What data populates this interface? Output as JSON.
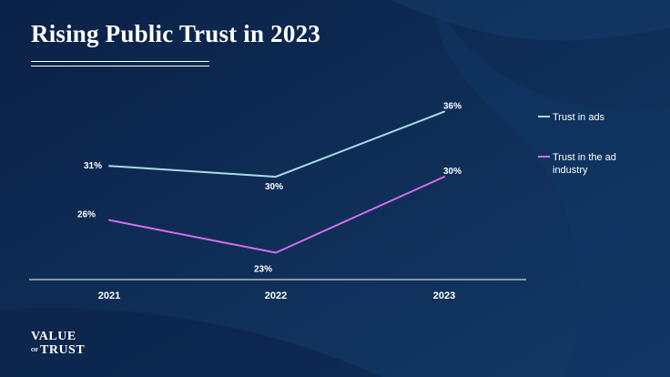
{
  "page": {
    "title": "Rising Public Trust in 2023",
    "logo": {
      "line1": "VALUE",
      "small": "OF",
      "line2": "TRUST"
    }
  },
  "colors": {
    "background": "#0d2a52",
    "trust_in_ads": "#a9dcea",
    "trust_in_ad_industry": "#d86cf0",
    "axis": "#ffffff"
  },
  "chart_data": {
    "type": "line",
    "title": "Rising Public Trust in 2023",
    "x": [
      "2021",
      "2022",
      "2023"
    ],
    "series": [
      {
        "name": "Trust in ads",
        "values": [
          31,
          30,
          36
        ],
        "labels": [
          "31%",
          "30%",
          "36%"
        ]
      },
      {
        "name": "Trust in the ad industry",
        "values": [
          26,
          23,
          30
        ],
        "labels": [
          "26%",
          "23%",
          "30%"
        ]
      }
    ],
    "ylim": [
      18,
      40
    ],
    "grid": false,
    "legend": "right",
    "xlabel": "",
    "ylabel": ""
  }
}
